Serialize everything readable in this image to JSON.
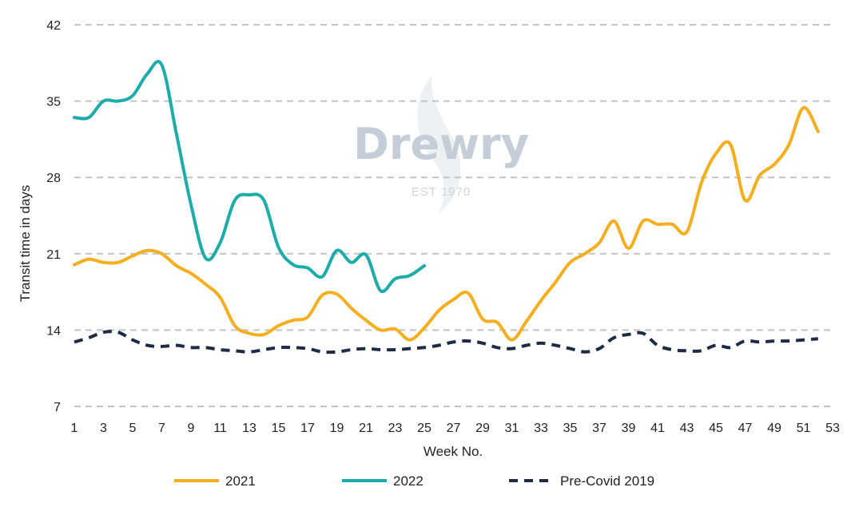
{
  "chart_data": {
    "type": "line",
    "xlabel": "Week No.",
    "ylabel": "Transit time in days",
    "xlim": [
      1,
      53
    ],
    "ylim": [
      7,
      42
    ],
    "x_ticks": [
      "1",
      "3",
      "5",
      "7",
      "9",
      "11",
      "13",
      "15",
      "17",
      "19",
      "21",
      "23",
      "25",
      "27",
      "29",
      "31",
      "33",
      "35",
      "37",
      "39",
      "41",
      "43",
      "45",
      "47",
      "49",
      "51",
      "53"
    ],
    "y_ticks": [
      "7",
      "14",
      "21",
      "28",
      "35",
      "42"
    ],
    "grid": true,
    "legend_position": "bottom",
    "watermark": {
      "name": "Drewry",
      "sub": "EST 1970"
    },
    "series": [
      {
        "name": "2021",
        "color": "#F5AE1E",
        "style": "solid",
        "x": [
          1,
          2,
          3,
          4,
          5,
          6,
          7,
          8,
          9,
          10,
          11,
          12,
          13,
          14,
          15,
          16,
          17,
          18,
          19,
          20,
          21,
          22,
          23,
          24,
          25,
          26,
          27,
          28,
          29,
          30,
          31,
          32,
          33,
          34,
          35,
          36,
          37,
          38,
          39,
          40,
          41,
          42,
          43,
          44,
          45,
          46,
          47,
          48,
          49,
          50,
          51,
          52
        ],
        "values": [
          20.0,
          20.5,
          20.2,
          20.2,
          20.8,
          21.3,
          21.0,
          19.9,
          19.2,
          18.2,
          17.0,
          14.4,
          13.7,
          13.6,
          14.4,
          14.9,
          15.2,
          17.2,
          17.3,
          16.0,
          14.9,
          14.0,
          14.1,
          13.1,
          14.2,
          15.8,
          16.8,
          17.4,
          15.0,
          14.7,
          13.1,
          14.8,
          16.7,
          18.4,
          20.2,
          21.0,
          22.0,
          24.0,
          21.5,
          24.0,
          23.7,
          23.7,
          23.0,
          27.5,
          30.2,
          31.0,
          25.9,
          28.2,
          29.2,
          31.0,
          34.4,
          32.2
        ]
      },
      {
        "name": "2022",
        "color": "#1CADAA",
        "style": "solid",
        "x": [
          1,
          2,
          3,
          4,
          5,
          6,
          7,
          8,
          9,
          10,
          11,
          12,
          13,
          14,
          15,
          16,
          17,
          18,
          19,
          20,
          21,
          22,
          23,
          24,
          25
        ],
        "values": [
          33.5,
          33.5,
          35.0,
          35.0,
          35.5,
          37.5,
          38.3,
          32.0,
          25.5,
          20.6,
          22.0,
          25.9,
          26.4,
          25.9,
          21.6,
          20.0,
          19.7,
          18.9,
          21.3,
          20.2,
          20.9,
          17.6,
          18.7,
          19.0,
          19.9
        ]
      },
      {
        "name": "Pre-Covid 2019",
        "color": "#1F2A44",
        "style": "dashed",
        "x": [
          1,
          2,
          3,
          4,
          5,
          6,
          7,
          8,
          9,
          10,
          11,
          12,
          13,
          14,
          15,
          16,
          17,
          18,
          19,
          20,
          21,
          22,
          23,
          24,
          25,
          26,
          27,
          28,
          29,
          30,
          31,
          32,
          33,
          34,
          35,
          36,
          37,
          38,
          39,
          40,
          41,
          42,
          43,
          44,
          45,
          46,
          47,
          48,
          49,
          50,
          51,
          52
        ],
        "values": [
          12.9,
          13.3,
          13.8,
          13.8,
          13.1,
          12.6,
          12.5,
          12.6,
          12.4,
          12.4,
          12.2,
          12.1,
          12.0,
          12.2,
          12.4,
          12.4,
          12.3,
          12.0,
          12.0,
          12.2,
          12.3,
          12.2,
          12.2,
          12.3,
          12.4,
          12.6,
          12.9,
          13.0,
          12.8,
          12.4,
          12.3,
          12.6,
          12.8,
          12.6,
          12.3,
          12.0,
          12.3,
          13.3,
          13.6,
          13.7,
          12.6,
          12.2,
          12.1,
          12.1,
          12.6,
          12.4,
          13.0,
          12.9,
          13.0,
          13.0,
          13.1,
          13.2
        ]
      }
    ]
  }
}
